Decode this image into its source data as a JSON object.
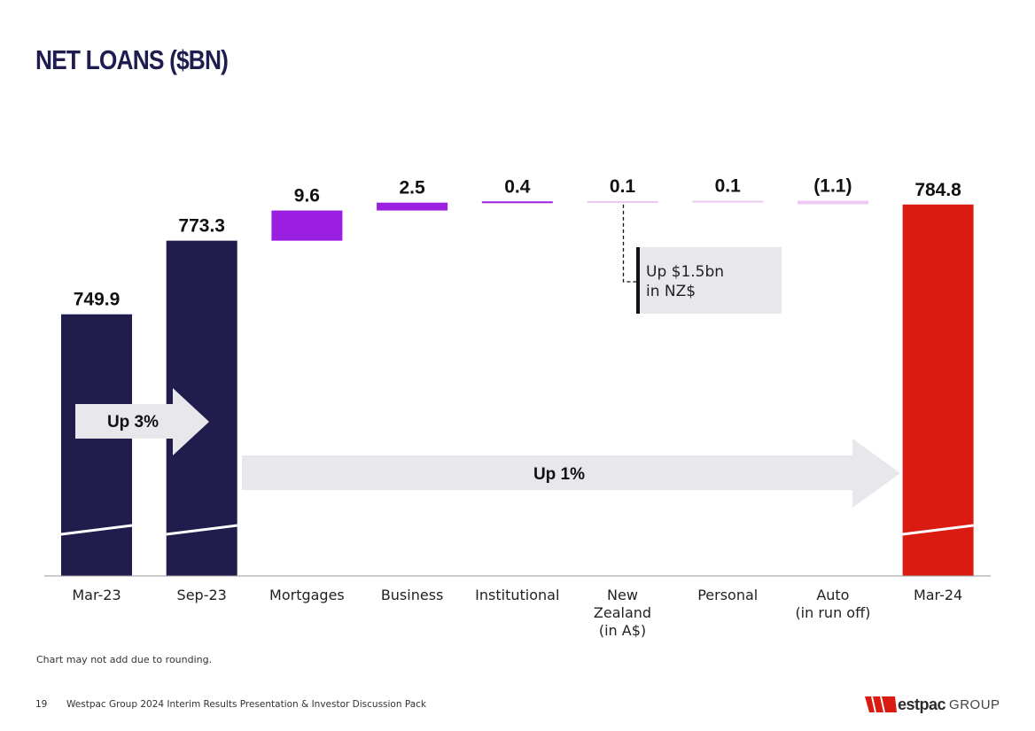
{
  "title": "NET LOANS ($BN)",
  "chart_data": {
    "type": "bar",
    "subtype": "waterfall",
    "title": "NET LOANS ($BN)",
    "categories": [
      "Mar-23",
      "Sep-23",
      "Mortgages",
      "Business",
      "Institutional",
      "New Zealand (in A$)",
      "Personal",
      "Auto (in run off)",
      "Mar-24"
    ],
    "category_lines": [
      [
        "Mar-23"
      ],
      [
        "Sep-23"
      ],
      [
        "Mortgages"
      ],
      [
        "Business"
      ],
      [
        "Institutional"
      ],
      [
        "New",
        "Zealand",
        "(in A$)"
      ],
      [
        "Personal"
      ],
      [
        "Auto",
        "(in run off)"
      ],
      [
        "Mar-24"
      ]
    ],
    "values": [
      749.9,
      773.3,
      9.6,
      2.5,
      0.4,
      0.1,
      0.1,
      -1.1,
      784.8
    ],
    "value_labels": [
      "749.9",
      "773.3",
      "9.6",
      "2.5",
      "0.4",
      "0.1",
      "0.1",
      "(1.1)",
      "784.8"
    ],
    "kinds": [
      "total",
      "total",
      "delta",
      "delta",
      "delta",
      "delta",
      "delta",
      "delta",
      "total"
    ],
    "colors": [
      "#201c4c",
      "#201c4c",
      "#9b1fe0",
      "#9b1fe0",
      "#9b1fe0",
      "#ebc9f0",
      "#ebc9f0",
      "#ebc9f0",
      "#da1b12"
    ],
    "axis_break": true,
    "annotations": {
      "arrow_short": "Up 3%",
      "arrow_long": "Up 1%",
      "nz_note": [
        "Up $1.5bn",
        "in NZ$"
      ]
    }
  },
  "footnote": "Chart may not add due to rounding.",
  "footer": {
    "page_number": "19",
    "text": "Westpac Group 2024 Interim Results Presentation & Investor Discussion Pack"
  },
  "logo": {
    "name": "estpac",
    "group": "GROUP",
    "color": "#da1b12"
  }
}
